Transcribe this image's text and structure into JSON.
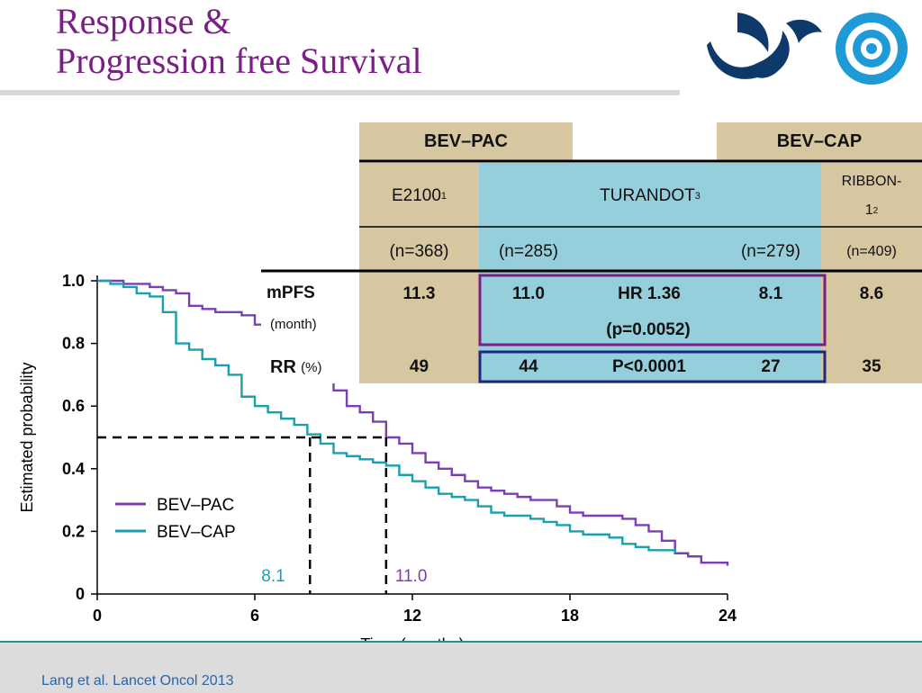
{
  "slide": {
    "title_line1": "Response &",
    "title_line2": "Progression free Survival",
    "footer": "Lang et al. Lancet Oncol 2013"
  },
  "colors": {
    "title": "#7a1f86",
    "pac": "#7b3fb5",
    "cap": "#1aa0ad",
    "table_tan": "#d6c7a0",
    "table_blue": "#95cfdc",
    "mpfs_box": "#7a1f86",
    "rr_box": "#1b2a80",
    "logo_navy": "#0d3a6b",
    "logo_blue": "#1e9ad6"
  },
  "table": {
    "hdr_pac": "BEV–PAC",
    "hdr_cap": "BEV–CAP",
    "e2100": "E2100",
    "e2100_sup": "1",
    "turandot": "TURANDOT",
    "turandot_sup": "3",
    "ribbon_a": "RIBBON-",
    "ribbon_b": "1",
    "ribbon_sup": "2",
    "n_e2100": "(n=368)",
    "n_pac": "(n=285)",
    "n_cap": "(n=279)",
    "n_ribbon": "(n=409)",
    "mpfs_label": "mPFS",
    "mpfs_unit": "(month)",
    "mpfs_e2100": "11.3",
    "mpfs_pac": "11.0",
    "mpfs_hr": "HR 1.36",
    "mpfs_p": "(p=0.0052)",
    "mpfs_cap": "8.1",
    "mpfs_ribbon": "8.6",
    "rr_label": "RR",
    "rr_unit": "(%)",
    "rr_e2100": "49",
    "rr_pac": "44",
    "rr_p": "P<0.0001",
    "rr_cap": "27",
    "rr_ribbon": "35"
  },
  "chart_data": {
    "type": "line",
    "xlabel": "Time (months)",
    "ylabel": "Estimated probability",
    "xlim": [
      0,
      24
    ],
    "ylim": [
      0,
      1.0
    ],
    "xticks": [
      "0",
      "6",
      "12",
      "18",
      "24"
    ],
    "yticks": [
      "0",
      "0.2",
      "0.4",
      "0.6",
      "0.8",
      "1.0"
    ],
    "legend_placement": "bottom-left",
    "median_line_y": 0.5,
    "annotations": [
      {
        "text": "8.1",
        "x": 8.1,
        "series": "BEV–CAP"
      },
      {
        "text": "11.0",
        "x": 11.0,
        "series": "BEV–PAC"
      }
    ],
    "series": [
      {
        "name": "BEV–PAC",
        "x": [
          0,
          0.5,
          1,
          1.5,
          2,
          2.5,
          3,
          3.5,
          4,
          4.5,
          5,
          5.5,
          6,
          6.5,
          7,
          7.5,
          8,
          8.5,
          9,
          9.5,
          10,
          10.5,
          11,
          11.5,
          12,
          12.5,
          13,
          13.5,
          14,
          14.5,
          15,
          15.5,
          16,
          16.5,
          17,
          17.5,
          18,
          18.5,
          19,
          19.5,
          20,
          20.5,
          21,
          21.5,
          22,
          22.5,
          23,
          23.5,
          24
        ],
        "y": [
          1.0,
          1.0,
          0.99,
          0.99,
          0.98,
          0.97,
          0.96,
          0.92,
          0.91,
          0.9,
          0.9,
          0.89,
          0.86,
          0.8,
          0.78,
          0.74,
          0.71,
          0.68,
          0.65,
          0.6,
          0.58,
          0.55,
          0.5,
          0.48,
          0.45,
          0.42,
          0.4,
          0.38,
          0.36,
          0.34,
          0.33,
          0.32,
          0.31,
          0.3,
          0.3,
          0.28,
          0.26,
          0.25,
          0.25,
          0.25,
          0.24,
          0.22,
          0.2,
          0.17,
          0.13,
          0.12,
          0.1,
          0.1,
          0.09
        ]
      },
      {
        "name": "BEV–CAP",
        "x": [
          0,
          0.5,
          1,
          1.5,
          2,
          2.5,
          3,
          3.5,
          4,
          4.5,
          5,
          5.5,
          6,
          6.5,
          7,
          7.5,
          8,
          8.5,
          9,
          9.5,
          10,
          10.5,
          11,
          11.5,
          12,
          12.5,
          13,
          13.5,
          14,
          14.5,
          15,
          15.5,
          16,
          16.5,
          17,
          17.5,
          18,
          18.5,
          19,
          19.5,
          20,
          20.5,
          21,
          21.5,
          22
        ],
        "y": [
          1.0,
          0.99,
          0.98,
          0.96,
          0.95,
          0.9,
          0.8,
          0.78,
          0.75,
          0.73,
          0.7,
          0.63,
          0.6,
          0.58,
          0.56,
          0.54,
          0.51,
          0.48,
          0.45,
          0.44,
          0.43,
          0.42,
          0.41,
          0.38,
          0.36,
          0.34,
          0.32,
          0.31,
          0.3,
          0.28,
          0.26,
          0.25,
          0.25,
          0.24,
          0.23,
          0.22,
          0.2,
          0.19,
          0.19,
          0.18,
          0.16,
          0.15,
          0.14,
          0.14,
          0.13
        ]
      }
    ]
  }
}
